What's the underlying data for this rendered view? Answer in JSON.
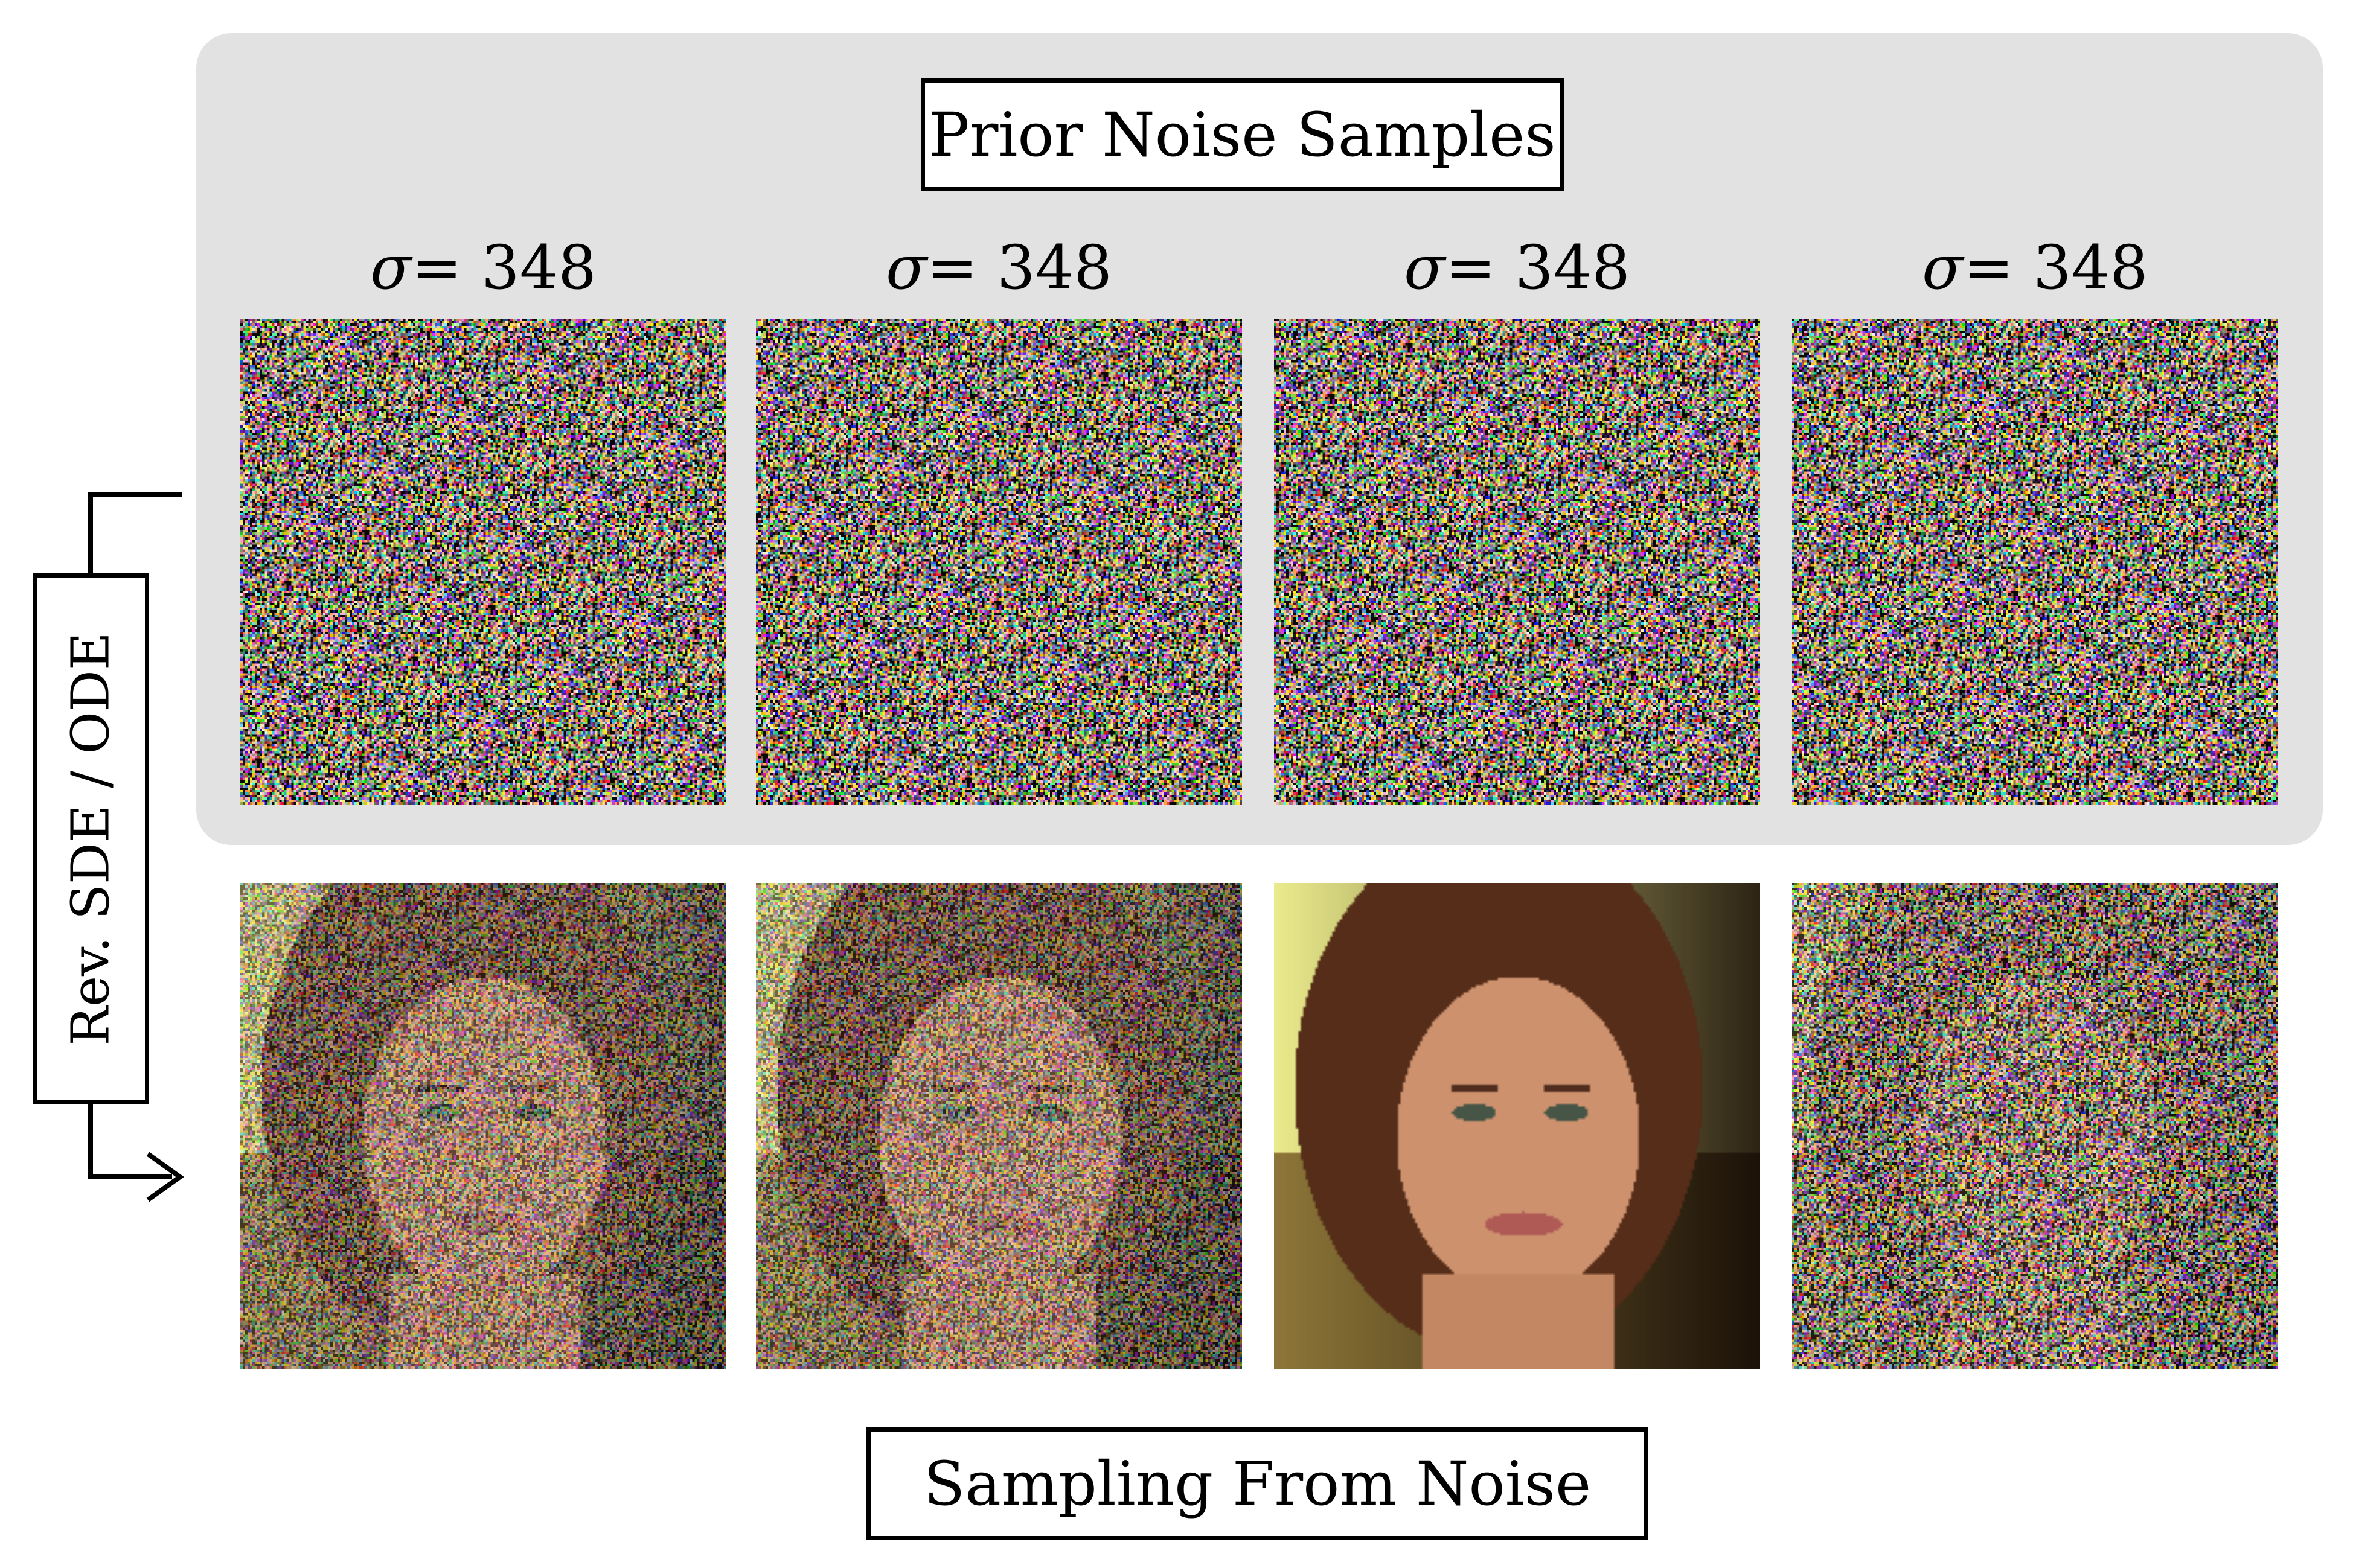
{
  "top_title": "Prior Noise Samples",
  "bottom_title": "Sampling From Noise",
  "side_label": "Rev. SDE / ODE",
  "columns": [
    {
      "sigma_symbol": "σ",
      "sigma_eq": " = 348"
    },
    {
      "sigma_symbol": "σ",
      "sigma_eq": " = 348"
    },
    {
      "sigma_symbol": "σ",
      "sigma_eq": " = 348"
    },
    {
      "sigma_symbol": "σ",
      "sigma_eq": " = 348"
    }
  ],
  "tiles_top": [
    {
      "content": "pure-noise"
    },
    {
      "content": "pure-noise"
    },
    {
      "content": "pure-noise"
    },
    {
      "content": "pure-noise"
    }
  ],
  "tiles_bottom": [
    {
      "content": "noisy-face"
    },
    {
      "content": "noisy-face"
    },
    {
      "content": "clean-face"
    },
    {
      "content": "faint-face-in-noise"
    }
  ],
  "colors": {
    "panel_background": "#e2e2e2",
    "box_border": "#000000",
    "page_background": "#ffffff"
  }
}
